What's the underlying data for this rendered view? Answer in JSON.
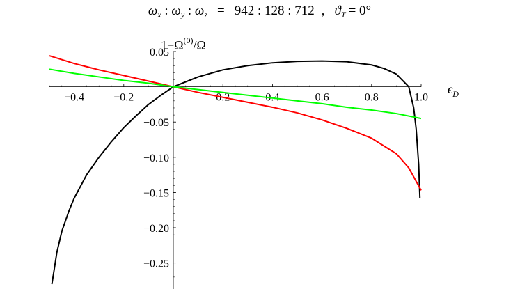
{
  "chart_data": {
    "type": "line",
    "title": "ωx : ωy : ωz   =   942 : 128 : 712   ,   ϑT = 0°",
    "title_parts": {
      "omega": "ω",
      "sub_x": "x",
      "sub_y": "y",
      "sub_z": "z",
      "colon": " : ",
      "equals": "=",
      "ratio": "942 : 128 : 712",
      "comma": ",",
      "theta": "ϑ",
      "sub_T": "T",
      "theta_value": "= 0°"
    },
    "xlabel": "ϵD",
    "xlabel_parts": {
      "symbol": "ϵ",
      "sub": "D"
    },
    "ylabel": "1−Ω(0)/Ω",
    "ylabel_parts": {
      "prefix": "1−Ω",
      "sup": "(0)",
      "suffix": "/Ω"
    },
    "xlim": [
      -0.5,
      1.0
    ],
    "ylim": [
      -0.28,
      0.05
    ],
    "x_ticks": [
      "−0.4",
      "−0.2",
      "0.2",
      "0.4",
      "0.6",
      "0.8",
      "1.0"
    ],
    "y_ticks": [
      "0.05",
      "−0.05",
      "−0.10",
      "−0.15",
      "−0.20",
      "−0.25"
    ],
    "grid": false,
    "series": [
      {
        "color": "#000000",
        "x": [
          -0.49,
          -0.47,
          -0.45,
          -0.42,
          -0.4,
          -0.35,
          -0.3,
          -0.25,
          -0.2,
          -0.15,
          -0.1,
          -0.05,
          0.0,
          0.1,
          0.2,
          0.3,
          0.4,
          0.5,
          0.6,
          0.7,
          0.8,
          0.85,
          0.9,
          0.95,
          0.97,
          0.98,
          0.99,
          0.995
        ],
        "y": [
          -0.28,
          -0.235,
          -0.205,
          -0.175,
          -0.158,
          -0.125,
          -0.1,
          -0.078,
          -0.058,
          -0.041,
          -0.025,
          -0.012,
          0.0,
          0.014,
          0.024,
          0.03,
          0.034,
          0.036,
          0.0365,
          0.0355,
          0.031,
          0.026,
          0.018,
          0.0,
          -0.03,
          -0.06,
          -0.11,
          -0.158
        ]
      },
      {
        "color": "#ff0000",
        "x": [
          -0.5,
          -0.4,
          -0.3,
          -0.2,
          -0.1,
          0.0,
          0.1,
          0.2,
          0.3,
          0.4,
          0.5,
          0.6,
          0.7,
          0.8,
          0.9,
          0.95,
          1.0
        ],
        "y": [
          0.044,
          0.033,
          0.024,
          0.016,
          0.008,
          0.0,
          -0.008,
          -0.015,
          -0.022,
          -0.029,
          -0.037,
          -0.047,
          -0.059,
          -0.073,
          -0.095,
          -0.115,
          -0.147
        ]
      },
      {
        "color": "#00ff00",
        "x": [
          -0.5,
          -0.4,
          -0.3,
          -0.2,
          -0.1,
          0.0,
          0.1,
          0.2,
          0.3,
          0.4,
          0.5,
          0.6,
          0.7,
          0.8,
          0.9,
          1.0
        ],
        "y": [
          0.025,
          0.019,
          0.014,
          0.009,
          0.005,
          0.0,
          -0.004,
          -0.008,
          -0.012,
          -0.016,
          -0.02,
          -0.024,
          -0.029,
          -0.033,
          -0.038,
          -0.045
        ]
      }
    ]
  }
}
